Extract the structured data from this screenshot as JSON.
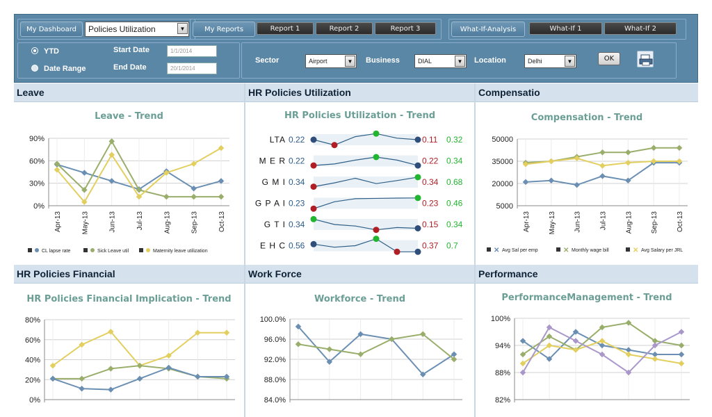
{
  "header": {
    "my_dashboard": "My Dashboard",
    "dashboard_select": "Policies Utilization",
    "my_reports": "My Reports",
    "reports": [
      "Report 1",
      "Report 2",
      "Report 3"
    ],
    "what_if_analysis": "What-If-Analysis",
    "what_ifs": [
      "What-If 1",
      "What-If 2"
    ],
    "ytd": "YTD",
    "date_range": "Date Range",
    "start_date_label": "Start Date",
    "end_date_label": "End Date",
    "start_date_value": "1/1/2014",
    "end_date_value": "20/1/2014",
    "sector_label": "Sector",
    "sector_value": "Airport",
    "business_label": "Business",
    "business_value": "DIAL",
    "location_label": "Location",
    "location_value": "Delhi",
    "ok_label": "OK",
    "dropdown_arrow": "▼"
  },
  "colors": {
    "blue_series": "#6a8fb3",
    "green_series": "#9aae6b",
    "yellow_series": "#e3cf5f",
    "purple_series": "#a998c9",
    "sub_title": "#6b9e95",
    "red_dot": "#b01e24",
    "green_dot": "#22b530",
    "navy_dot": "#2f4f7a"
  },
  "panels": {
    "leave": {
      "title": "Leave",
      "subtitle": "Leave - Trend",
      "legend": [
        "CL lapse rate",
        "Sick Leave util",
        "Maternity leave utilization"
      ]
    },
    "hr_util": {
      "title": "HR Policies Utilization",
      "subtitle": "HR Policies Utilization - Trend"
    },
    "compensation": {
      "title": "Compensatio",
      "subtitle": "Compensation - Trend",
      "legend": [
        "Avg Sal per emp",
        "Monthly wage bill",
        "Avg Salary per JRL"
      ]
    },
    "hr_financial": {
      "title": "HR Policies Financial",
      "subtitle": "HR Policies Financial Implication - Trend"
    },
    "work_force": {
      "title": "Work Force",
      "subtitle": "Workforce - Trend"
    },
    "performance": {
      "title": "Performance",
      "subtitle": "PerformanceManagement - Trend"
    }
  },
  "chart_data": [
    {
      "id": "leave",
      "type": "line",
      "x": [
        "Apr-13",
        "May-13",
        "Jun-13",
        "Jul-13",
        "Aug-13",
        "Sep-13",
        "Oct-13"
      ],
      "yticks": [
        "90%",
        "60%",
        "30%",
        "0%"
      ],
      "ylim": [
        0,
        90
      ],
      "series": [
        {
          "name": "CL lapse rate",
          "color": "#6a8fb3",
          "values": [
            55,
            44,
            33,
            22,
            46,
            23,
            33
          ]
        },
        {
          "name": "Sick Leave util",
          "color": "#9aae6b",
          "values": [
            56,
            21,
            86,
            21,
            12,
            12,
            12
          ]
        },
        {
          "name": "Maternity leave utilization",
          "color": "#e3cf5f",
          "values": [
            48,
            5,
            68,
            12,
            44,
            56,
            77
          ]
        }
      ]
    },
    {
      "id": "hr_util",
      "type": "sparkline-table",
      "rows": [
        {
          "label": "LTA",
          "first": "0.22",
          "min": "0.11",
          "max": "0.32",
          "points": [
            0.5,
            0.15,
            0.7,
            0.9,
            0.6,
            0.5
          ],
          "min_idx": 1,
          "max_idx": 3
        },
        {
          "label": "M E R",
          "first": "0.22",
          "min": "0.22",
          "max": "0.34",
          "points": [
            0.2,
            0.3,
            0.55,
            0.75,
            0.55,
            0.2
          ],
          "min_idx": 0,
          "max_idx": 3
        },
        {
          "label": "G M I",
          "first": "0.34",
          "min": "0.34",
          "max": "0.68",
          "points": [
            0.2,
            0.45,
            0.75,
            0.4,
            0.6,
            0.82
          ],
          "min_idx": 0,
          "max_idx": 5
        },
        {
          "label": "G P A I",
          "first": "0.23",
          "min": "0.23",
          "max": "0.46",
          "points": [
            0.15,
            0.6,
            0.8,
            0.82,
            0.84,
            0.85
          ],
          "min_idx": 0,
          "max_idx": 5
        },
        {
          "label": "G T I",
          "first": "0.34",
          "min": "0.15",
          "max": "0.34",
          "points": [
            0.85,
            0.5,
            0.4,
            0.15,
            0.3,
            0.25
          ],
          "min_idx": 3,
          "max_idx": 0
        },
        {
          "label": "E H C",
          "first": "0.56",
          "min": "0.37",
          "max": "0.7",
          "points": [
            0.6,
            0.4,
            0.5,
            0.95,
            0.1,
            0.1
          ],
          "min_idx": 4,
          "max_idx": 3
        }
      ]
    },
    {
      "id": "compensation",
      "type": "line",
      "x": [
        "Apr-13",
        "May-13",
        "Jun-13",
        "Jul-13",
        "Aug-13",
        "Sep-13",
        "Oct-13"
      ],
      "yticks": [
        "50000",
        "35000",
        "20000",
        "5000"
      ],
      "ylim": [
        5000,
        50000
      ],
      "series": [
        {
          "name": "Avg Sal per emp",
          "color": "#6a8fb3",
          "values": [
            21000,
            22000,
            19000,
            25000,
            22000,
            34000,
            34000
          ]
        },
        {
          "name": "Monthly wage bill",
          "color": "#9aae6b",
          "values": [
            34000,
            35000,
            38000,
            41000,
            41000,
            44000,
            44000
          ]
        },
        {
          "name": "Avg Salary per JRL",
          "color": "#e3cf5f",
          "values": [
            33000,
            35000,
            37000,
            32000,
            34000,
            35000,
            35000
          ]
        }
      ]
    },
    {
      "id": "hr_financial",
      "type": "line",
      "yticks": [
        "80%",
        "60%",
        "40%",
        "20%",
        "0%"
      ],
      "ylim": [
        0,
        80
      ],
      "series": [
        {
          "color": "#e3cf5f",
          "values": [
            34,
            55,
            68,
            34,
            44,
            67,
            67
          ]
        },
        {
          "color": "#9aae6b",
          "values": [
            21,
            21,
            31,
            34,
            31,
            23,
            21
          ]
        },
        {
          "color": "#6a8fb3",
          "values": [
            21,
            11,
            10,
            21,
            32,
            23,
            23
          ]
        }
      ]
    },
    {
      "id": "work_force",
      "type": "line",
      "yticks": [
        "100.0%",
        "96.0%",
        "92.0%",
        "88.0%",
        "84.0%"
      ],
      "ylim": [
        84,
        100
      ],
      "series": [
        {
          "color": "#6a8fb3",
          "values": [
            98.5,
            91.5,
            97.0,
            96.0,
            89.0,
            93.0
          ]
        },
        {
          "color": "#9aae6b",
          "values": [
            95.0,
            94.0,
            93.0,
            96.0,
            97.0,
            92.0
          ]
        }
      ]
    },
    {
      "id": "performance",
      "type": "line",
      "yticks": [
        "100%",
        "94%",
        "88%",
        "82%"
      ],
      "ylim": [
        82,
        100
      ],
      "series": [
        {
          "color": "#6a8fb3",
          "values": [
            95,
            91,
            97,
            94,
            93,
            92,
            92
          ]
        },
        {
          "color": "#9aae6b",
          "values": [
            92,
            96,
            93,
            98,
            99,
            95,
            94
          ]
        },
        {
          "color": "#e3cf5f",
          "values": [
            90,
            94,
            93,
            95,
            92,
            91,
            90
          ]
        },
        {
          "color": "#a998c9",
          "values": [
            88,
            98,
            95,
            92,
            88,
            94,
            97
          ]
        }
      ]
    }
  ]
}
